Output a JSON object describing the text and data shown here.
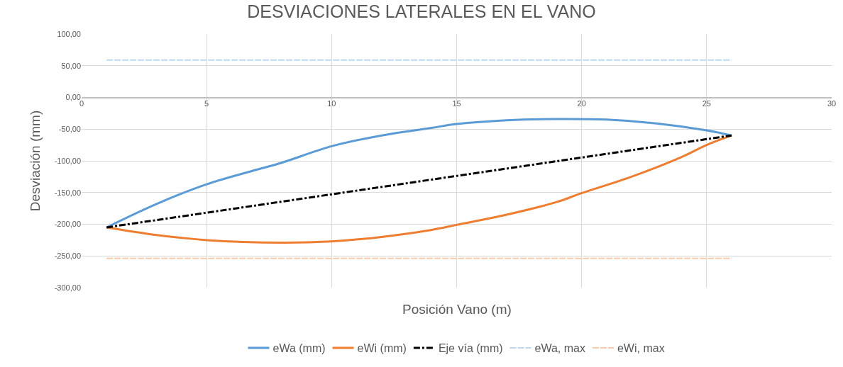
{
  "chart_data": {
    "type": "line",
    "title": "DESVIACIONES LATERALES EN EL VANO",
    "xlabel": "Posición Vano (m)",
    "ylabel": "Desviación (mm)",
    "xlim": [
      0,
      30
    ],
    "xticks": [
      0,
      5,
      10,
      15,
      20,
      25,
      30
    ],
    "ylim": [
      -300,
      100
    ],
    "yticks": [
      {
        "value": 100,
        "label": "100,00"
      },
      {
        "value": 50,
        "label": "50,00"
      },
      {
        "value": 0,
        "label": "0,00"
      },
      {
        "value": -50,
        "label": "-50,00"
      },
      {
        "value": -100,
        "label": "-100,00"
      },
      {
        "value": -150,
        "label": "-150,00"
      },
      {
        "value": -200,
        "label": "-200,00"
      },
      {
        "value": -250,
        "label": "-250,00"
      },
      {
        "value": -300,
        "label": "-300,00"
      }
    ],
    "grid": true,
    "legend": "bottom",
    "marker": "none",
    "series": [
      {
        "name": "eWa (mm)",
        "color": "#5b9bd5",
        "line_style": "solid",
        "x": [
          1,
          3,
          5,
          7,
          8,
          10,
          12,
          14,
          15,
          17,
          19,
          21,
          23,
          25,
          26
        ],
        "values": [
          -205,
          -168,
          -137,
          -114,
          -103,
          -77,
          -60,
          -48,
          -42,
          -36,
          -34,
          -35,
          -41,
          -52,
          -60
        ]
      },
      {
        "name": "eWi (mm)",
        "color": "#ed7d31",
        "line_style": "solid",
        "x": [
          1,
          3,
          5,
          8,
          10,
          12,
          14,
          15,
          17,
          19,
          20,
          22,
          24,
          25,
          26
        ],
        "values": [
          -205,
          -217,
          -225,
          -229,
          -227,
          -220,
          -209,
          -201,
          -185,
          -165,
          -151,
          -125,
          -94,
          -75,
          -60
        ]
      },
      {
        "name": "Eje vía (mm)",
        "color": "#000000",
        "line_style": "dashdot",
        "x": [
          1,
          26
        ],
        "values": [
          -205,
          -60
        ]
      },
      {
        "name": "eWa, max",
        "color": "#bdd7ee",
        "line_style": "dashed",
        "x": [
          1,
          26
        ],
        "values": [
          59,
          59
        ]
      },
      {
        "name": "eWi, max",
        "color": "#f8cbad",
        "line_style": "dashed",
        "x": [
          1,
          26
        ],
        "values": [
          -254,
          -254
        ]
      }
    ]
  }
}
